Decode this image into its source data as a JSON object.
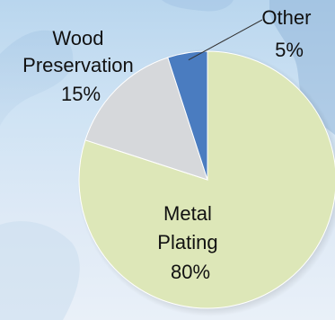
{
  "chart_data": {
    "type": "pie",
    "start_angle_deg": 0,
    "direction": "clockwise",
    "slices": [
      {
        "label": "Metal Plating",
        "value": 80,
        "value_text": "80%",
        "color": "#dde7b8"
      },
      {
        "label": "Wood Preservation",
        "value": 15,
        "value_text": "15%",
        "color": "#d6d8db"
      },
      {
        "label": "Other",
        "value": 5,
        "value_text": "5%",
        "color": "#4a7cc0"
      }
    ]
  }
}
